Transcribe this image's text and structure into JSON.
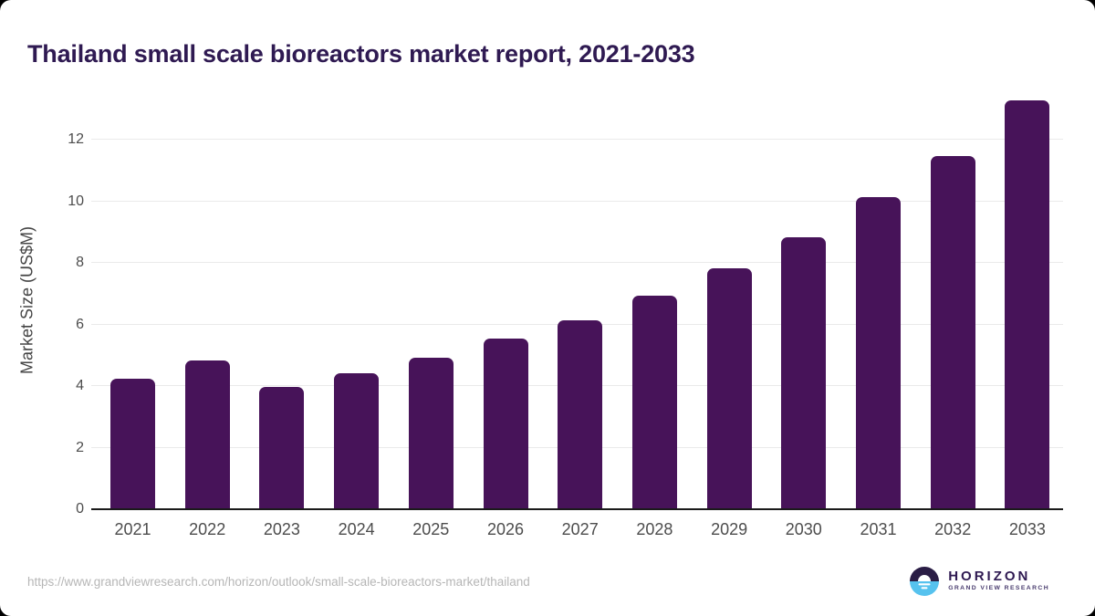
{
  "page": {
    "title": "Thailand small scale bioreactors market report, 2021-2033",
    "source_url": "https://www.grandviewresearch.com/horizon/outlook/small-scale-bioreactors-market/thailand"
  },
  "logo": {
    "name": "HORIZON",
    "subtitle": "GRAND VIEW RESEARCH"
  },
  "colors": {
    "bar": "#471359",
    "title_text": "#2f1a52",
    "axis_text": "#4d4d4d",
    "gridline": "#eaeaea",
    "axis_line": "#1a1a1a",
    "url_text": "#b6b6b6",
    "logo_dark_half": "#2a1d45",
    "logo_blue_half": "#56c2ee"
  },
  "chart_data": {
    "type": "bar",
    "title": "Thailand small scale bioreactors market report, 2021-2033",
    "categories": [
      "2021",
      "2022",
      "2023",
      "2024",
      "2025",
      "2026",
      "2027",
      "2028",
      "2029",
      "2030",
      "2031",
      "2032",
      "2033"
    ],
    "values": [
      4.2,
      4.8,
      3.95,
      4.4,
      4.9,
      5.5,
      6.1,
      6.9,
      7.8,
      8.8,
      10.1,
      11.45,
      13.25
    ],
    "xlabel": "",
    "ylabel": "Market Size (US$M)",
    "yticks": [
      0,
      2,
      4,
      6,
      8,
      10,
      12
    ],
    "ylim": [
      0,
      13.57
    ],
    "grid": "horizontal",
    "legend": "none",
    "bar_color": "#471359"
  }
}
